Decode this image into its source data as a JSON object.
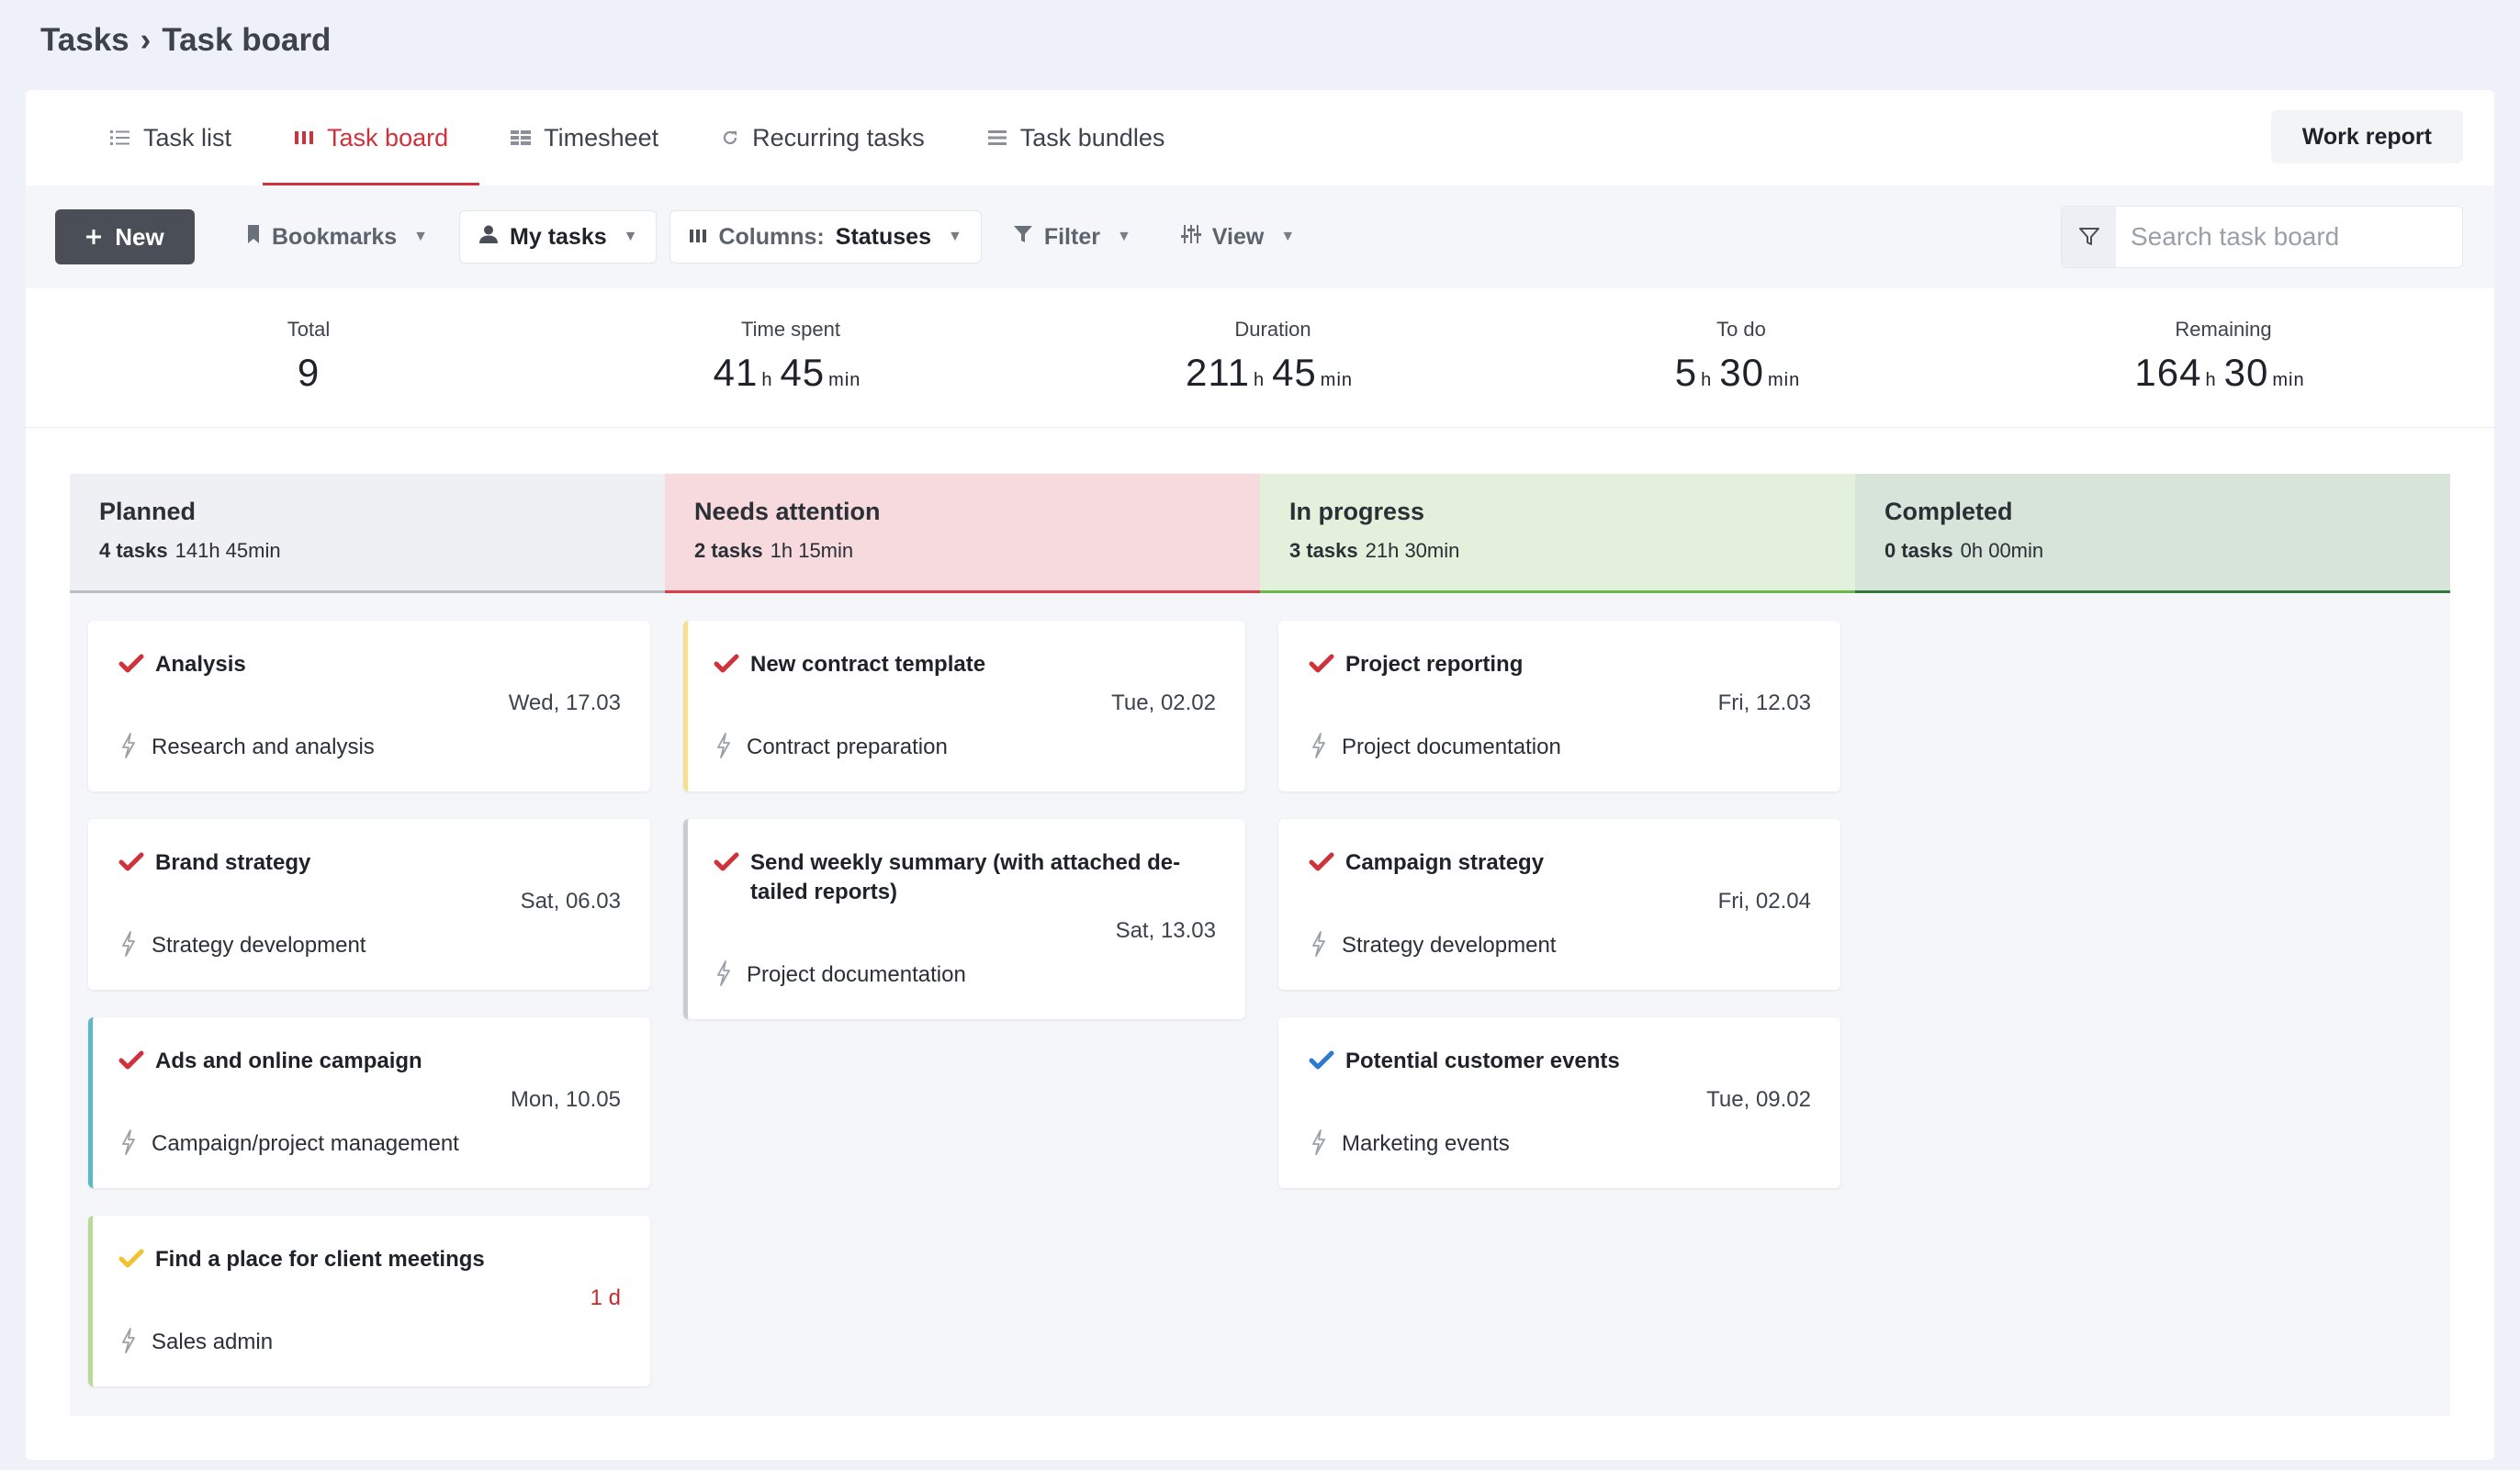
{
  "breadcrumb": {
    "root": "Tasks",
    "separator": "›",
    "current": "Task board"
  },
  "tabs": [
    {
      "label": "Task list",
      "icon": "list-icon",
      "active": false
    },
    {
      "label": "Task board",
      "icon": "board-icon",
      "active": true
    },
    {
      "label": "Timesheet",
      "icon": "grid-icon",
      "active": false
    },
    {
      "label": "Recurring tasks",
      "icon": "refresh-icon",
      "active": false
    },
    {
      "label": "Task bundles",
      "icon": "stack-icon",
      "active": false
    }
  ],
  "work_report_label": "Work report",
  "toolbar": {
    "new_label": "New",
    "bookmarks_label": "Bookmarks",
    "my_tasks_label": "My tasks",
    "columns_prefix": "Columns:",
    "columns_value": "Statuses",
    "filter_label": "Filter",
    "view_label": "View",
    "search_placeholder": "Search task board"
  },
  "stats": [
    {
      "label": "Total",
      "value": "9"
    },
    {
      "label": "Time spent",
      "hours": "41",
      "minutes": "45"
    },
    {
      "label": "Duration",
      "hours": "211",
      "minutes": "45"
    },
    {
      "label": "To do",
      "hours": "5",
      "minutes": "30"
    },
    {
      "label": "Remaining",
      "hours": "164",
      "minutes": "30"
    }
  ],
  "units": {
    "h": "h",
    "min": "min"
  },
  "columns": [
    {
      "title": "Planned",
      "count": "4 tasks",
      "time": "141h 45min",
      "color": "#eef0f4",
      "line": "#b9bdc8",
      "cards": [
        {
          "title": "Analysis",
          "date": "Wed, 17.03",
          "project": "Research and analysis",
          "check": "#d0323c",
          "accent": ""
        },
        {
          "title": "Brand strategy",
          "date": "Sat, 06.03",
          "project": "Strategy development",
          "check": "#d0323c",
          "accent": ""
        },
        {
          "title": "Ads and online campaign",
          "date": "Mon, 10.05",
          "project": "Campaign/project management",
          "check": "#d0323c",
          "accent": "#5db8c8"
        },
        {
          "title": "Find a place for client meetings",
          "date": "1 d",
          "overdue": true,
          "project": "Sales admin",
          "check": "#f2c230",
          "accent": "#b8dc98"
        }
      ]
    },
    {
      "title": "Needs attention",
      "count": "2 tasks",
      "time": "1h 15min",
      "color": "#f6dade",
      "line": "#d9404a",
      "cards": [
        {
          "title": "New contract template",
          "date": "Tue, 02.02",
          "project": "Contract preparation",
          "check": "#d0323c",
          "accent": "#f6e08c"
        },
        {
          "title": "Send weekly summary (with attached de-tailed reports)",
          "date": "Sat, 13.03",
          "project": "Project documentation",
          "check": "#d0323c",
          "accent": "#c9ccd2"
        }
      ]
    },
    {
      "title": "In progress",
      "count": "3 tasks",
      "time": "21h 30min",
      "color": "#e3f1dc",
      "line": "#6bb84a",
      "cards": [
        {
          "title": "Project reporting",
          "date": "Fri, 12.03",
          "project": "Project documentation",
          "check": "#d0323c",
          "accent": ""
        },
        {
          "title": "Campaign strategy",
          "date": "Fri, 02.04",
          "project": "Strategy development",
          "check": "#d0323c",
          "accent": ""
        },
        {
          "title": "Potential customer events",
          "date": "Tue, 09.02",
          "project": "Marketing events",
          "check": "#2b7bd0",
          "accent": ""
        }
      ]
    },
    {
      "title": "Completed",
      "count": "0 tasks",
      "time": "0h 00min",
      "color": "#d6e4d9",
      "line": "#2f7a3a",
      "cards": []
    }
  ]
}
